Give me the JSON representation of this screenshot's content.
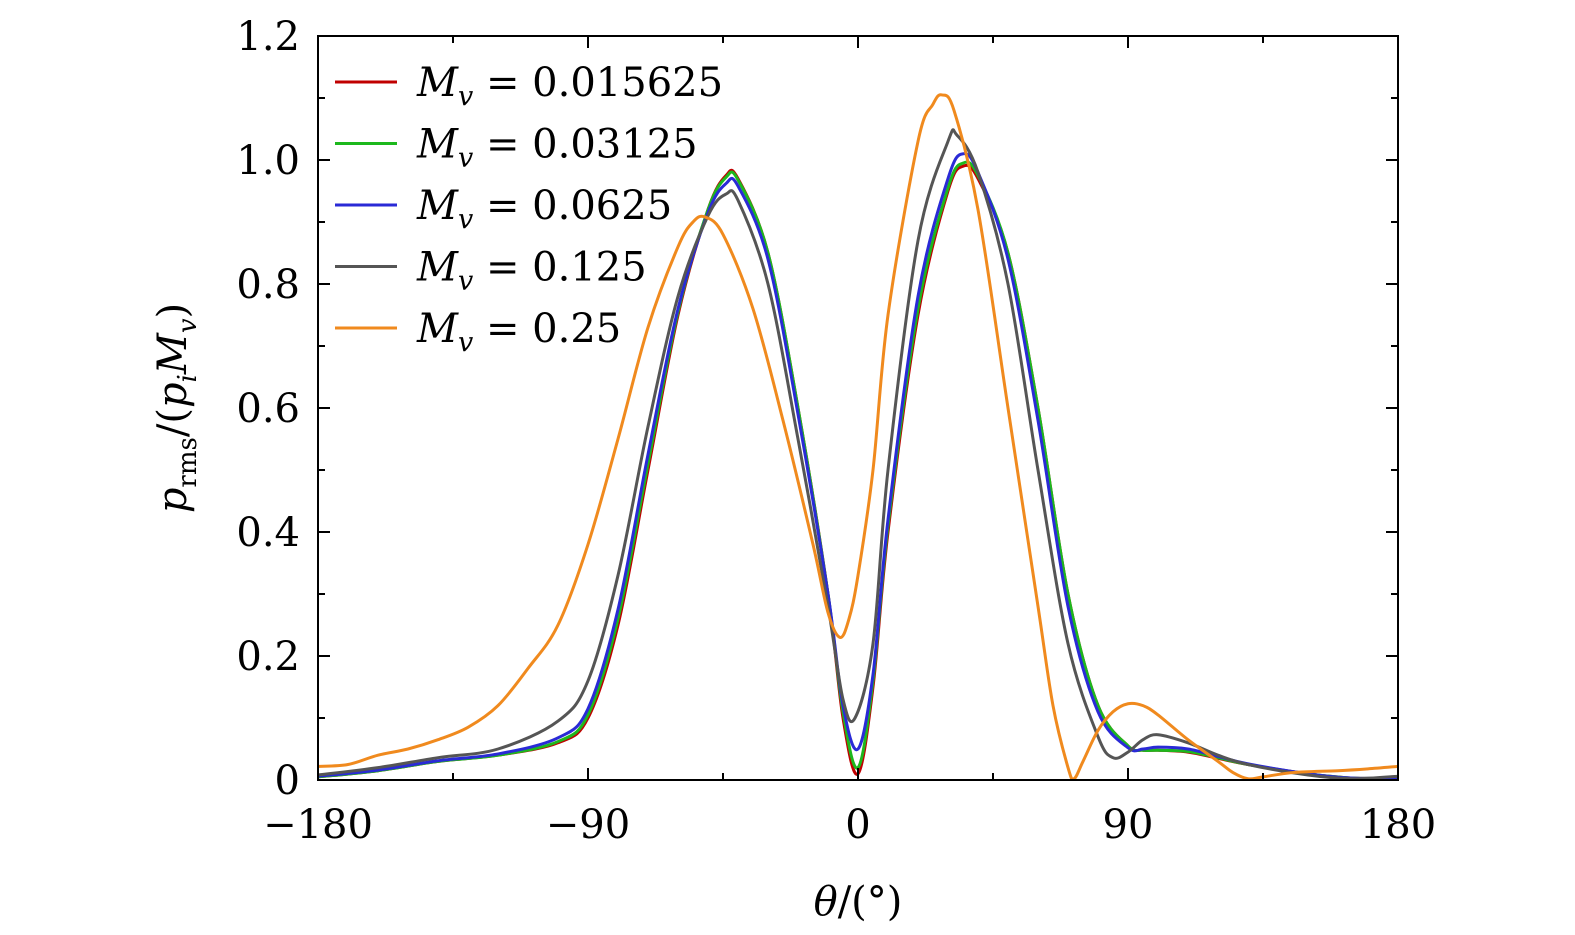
{
  "chart_data": {
    "type": "line",
    "title": "",
    "xlabel": "θ/(°)",
    "ylabel": "p_rms/(p_i M_v)",
    "xlim": [
      -180,
      180
    ],
    "ylim": [
      0,
      1.2
    ],
    "xticks": [
      -180,
      -90,
      0,
      90,
      180
    ],
    "xtick_labels": [
      "−180",
      "−90",
      "0",
      "90",
      "180"
    ],
    "yticks": [
      0,
      0.2,
      0.4,
      0.6,
      0.8,
      1.0,
      1.2
    ],
    "ytick_labels": [
      "0",
      "0.2",
      "0.4",
      "0.6",
      "0.8",
      "1.0",
      "1.2"
    ],
    "grid": false,
    "legend_position": "top-left",
    "series": [
      {
        "name": "M_v = 0.015625",
        "legend_value": "0.015625",
        "color": "#c00000",
        "points": [
          [
            -180,
            0.005
          ],
          [
            -160,
            0.015
          ],
          [
            -140,
            0.03
          ],
          [
            -120,
            0.04
          ],
          [
            -100,
            0.06
          ],
          [
            -90,
            0.1
          ],
          [
            -80,
            0.25
          ],
          [
            -70,
            0.5
          ],
          [
            -60,
            0.75
          ],
          [
            -50,
            0.92
          ],
          [
            -44,
            0.975
          ],
          [
            -40,
            0.97
          ],
          [
            -30,
            0.85
          ],
          [
            -20,
            0.6
          ],
          [
            -10,
            0.3
          ],
          [
            -5,
            0.1
          ],
          [
            0,
            0.01
          ],
          [
            5,
            0.15
          ],
          [
            10,
            0.4
          ],
          [
            20,
            0.75
          ],
          [
            30,
            0.95
          ],
          [
            35,
            0.99
          ],
          [
            40,
            0.97
          ],
          [
            50,
            0.85
          ],
          [
            60,
            0.6
          ],
          [
            70,
            0.3
          ],
          [
            80,
            0.12
          ],
          [
            90,
            0.055
          ],
          [
            95,
            0.048
          ],
          [
            100,
            0.048
          ],
          [
            110,
            0.045
          ],
          [
            120,
            0.035
          ],
          [
            130,
            0.025
          ],
          [
            150,
            0.01
          ],
          [
            165,
            0.003
          ],
          [
            180,
            0.003
          ]
        ]
      },
      {
        "name": "M_v = 0.03125",
        "legend_value": "0.03125",
        "color": "#1db81d",
        "points": [
          [
            -180,
            0.005
          ],
          [
            -160,
            0.015
          ],
          [
            -140,
            0.03
          ],
          [
            -120,
            0.04
          ],
          [
            -100,
            0.062
          ],
          [
            -90,
            0.105
          ],
          [
            -80,
            0.26
          ],
          [
            -70,
            0.51
          ],
          [
            -60,
            0.755
          ],
          [
            -50,
            0.92
          ],
          [
            -44,
            0.972
          ],
          [
            -40,
            0.968
          ],
          [
            -30,
            0.85
          ],
          [
            -20,
            0.6
          ],
          [
            -10,
            0.3
          ],
          [
            -5,
            0.11
          ],
          [
            0,
            0.02
          ],
          [
            5,
            0.16
          ],
          [
            10,
            0.41
          ],
          [
            20,
            0.76
          ],
          [
            30,
            0.955
          ],
          [
            35,
            0.995
          ],
          [
            40,
            0.975
          ],
          [
            50,
            0.85
          ],
          [
            60,
            0.6
          ],
          [
            70,
            0.3
          ],
          [
            80,
            0.12
          ],
          [
            90,
            0.055
          ],
          [
            95,
            0.048
          ],
          [
            100,
            0.048
          ],
          [
            110,
            0.046
          ],
          [
            120,
            0.036
          ],
          [
            130,
            0.025
          ],
          [
            150,
            0.01
          ],
          [
            165,
            0.003
          ],
          [
            180,
            0.003
          ]
        ]
      },
      {
        "name": "M_v = 0.0625",
        "legend_value": "0.0625",
        "color": "#2a2ad6",
        "points": [
          [
            -180,
            0.006
          ],
          [
            -160,
            0.016
          ],
          [
            -140,
            0.031
          ],
          [
            -120,
            0.042
          ],
          [
            -100,
            0.068
          ],
          [
            -90,
            0.115
          ],
          [
            -80,
            0.275
          ],
          [
            -70,
            0.525
          ],
          [
            -60,
            0.76
          ],
          [
            -50,
            0.915
          ],
          [
            -44,
            0.962
          ],
          [
            -40,
            0.958
          ],
          [
            -30,
            0.84
          ],
          [
            -20,
            0.59
          ],
          [
            -10,
            0.3
          ],
          [
            -5,
            0.12
          ],
          [
            0,
            0.05
          ],
          [
            5,
            0.17
          ],
          [
            10,
            0.42
          ],
          [
            20,
            0.78
          ],
          [
            30,
            0.97
          ],
          [
            35,
            1.01
          ],
          [
            40,
            0.98
          ],
          [
            50,
            0.84
          ],
          [
            60,
            0.58
          ],
          [
            70,
            0.28
          ],
          [
            80,
            0.11
          ],
          [
            90,
            0.052
          ],
          [
            95,
            0.05
          ],
          [
            100,
            0.053
          ],
          [
            110,
            0.05
          ],
          [
            120,
            0.038
          ],
          [
            130,
            0.026
          ],
          [
            150,
            0.01
          ],
          [
            165,
            0.003
          ],
          [
            180,
            0.003
          ]
        ]
      },
      {
        "name": "M_v = 0.125",
        "legend_value": "0.125",
        "color": "#555555",
        "points": [
          [
            -180,
            0.008
          ],
          [
            -160,
            0.02
          ],
          [
            -140,
            0.036
          ],
          [
            -120,
            0.05
          ],
          [
            -100,
            0.095
          ],
          [
            -90,
            0.16
          ],
          [
            -80,
            0.33
          ],
          [
            -70,
            0.57
          ],
          [
            -60,
            0.78
          ],
          [
            -50,
            0.91
          ],
          [
            -44,
            0.945
          ],
          [
            -40,
            0.935
          ],
          [
            -30,
            0.8
          ],
          [
            -20,
            0.55
          ],
          [
            -10,
            0.28
          ],
          [
            -5,
            0.13
          ],
          [
            -1,
            0.1
          ],
          [
            5,
            0.22
          ],
          [
            10,
            0.5
          ],
          [
            20,
            0.87
          ],
          [
            30,
            1.03
          ],
          [
            33,
            1.04
          ],
          [
            40,
            0.98
          ],
          [
            50,
            0.8
          ],
          [
            60,
            0.5
          ],
          [
            70,
            0.22
          ],
          [
            80,
            0.07
          ],
          [
            85,
            0.036
          ],
          [
            90,
            0.045
          ],
          [
            95,
            0.065
          ],
          [
            100,
            0.073
          ],
          [
            110,
            0.06
          ],
          [
            120,
            0.04
          ],
          [
            130,
            0.025
          ],
          [
            150,
            0.008
          ],
          [
            165,
            0.002
          ],
          [
            180,
            0.006
          ]
        ]
      },
      {
        "name": "M_v = 0.25",
        "legend_value": "0.25",
        "color": "#f08a1e",
        "points": [
          [
            -180,
            0.022
          ],
          [
            -170,
            0.025
          ],
          [
            -160,
            0.04
          ],
          [
            -150,
            0.05
          ],
          [
            -140,
            0.065
          ],
          [
            -130,
            0.085
          ],
          [
            -120,
            0.12
          ],
          [
            -110,
            0.18
          ],
          [
            -100,
            0.25
          ],
          [
            -90,
            0.38
          ],
          [
            -80,
            0.55
          ],
          [
            -70,
            0.73
          ],
          [
            -60,
            0.86
          ],
          [
            -55,
            0.9
          ],
          [
            -51,
            0.908
          ],
          [
            -45,
            0.88
          ],
          [
            -35,
            0.76
          ],
          [
            -25,
            0.58
          ],
          [
            -15,
            0.38
          ],
          [
            -10,
            0.27
          ],
          [
            -6,
            0.23
          ],
          [
            -3,
            0.26
          ],
          [
            0,
            0.33
          ],
          [
            5,
            0.5
          ],
          [
            10,
            0.75
          ],
          [
            20,
            1.03
          ],
          [
            25,
            1.09
          ],
          [
            28,
            1.105
          ],
          [
            32,
            1.08
          ],
          [
            40,
            0.92
          ],
          [
            50,
            0.6
          ],
          [
            60,
            0.28
          ],
          [
            65,
            0.12
          ],
          [
            70,
            0.02
          ],
          [
            72,
            0.002
          ],
          [
            75,
            0.03
          ],
          [
            80,
            0.08
          ],
          [
            85,
            0.11
          ],
          [
            90,
            0.123
          ],
          [
            95,
            0.12
          ],
          [
            100,
            0.105
          ],
          [
            110,
            0.065
          ],
          [
            120,
            0.03
          ],
          [
            125,
            0.012
          ],
          [
            130,
            0.002
          ],
          [
            135,
            0.005
          ],
          [
            145,
            0.012
          ],
          [
            160,
            0.015
          ],
          [
            170,
            0.018
          ],
          [
            180,
            0.022
          ]
        ]
      }
    ]
  }
}
